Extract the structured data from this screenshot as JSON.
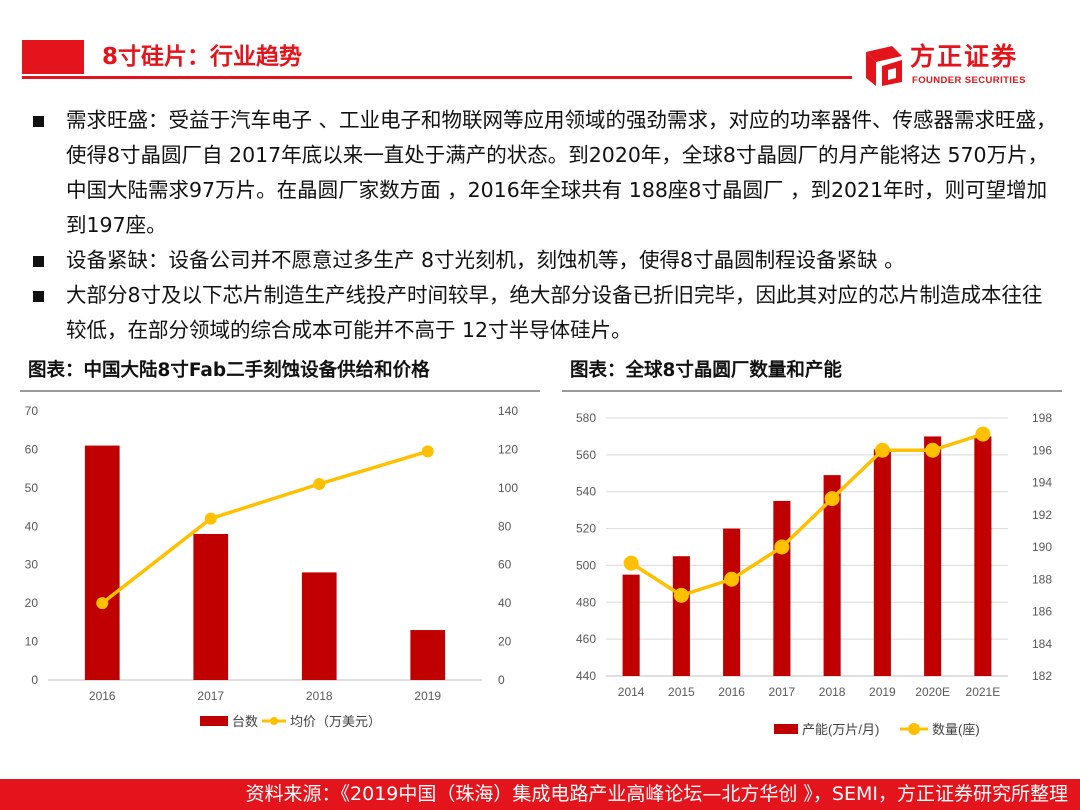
{
  "header": {
    "title": "8寸硅片：行业趋势",
    "logo_cn": "方正证券",
    "logo_en": "FOUNDER SECURITIES",
    "accent_color": "#e3141b"
  },
  "bullets": [
    "需求旺盛：受益于汽车电子 、工业电子和物联网等应用领域的强劲需求，对应的功率器件、传感器需求旺盛，使得8寸晶圆厂自 2017年底以来一直处于满产的状态。到2020年，全球8寸晶圆厂的月产能将达 570万片，中国大陆需求97万片。在晶圆厂家数方面 ，2016年全球共有 188座8寸晶圆厂 ，到2021年时，则可望增加到197座。",
    "设备紧缺：设备公司并不愿意过多生产  8寸光刻机，刻蚀机等，使得8寸晶圆制程设备紧缺 。",
    "大部分8寸及以下芯片制造生产线投产时间较早，绝大部分设备已折旧完毕，因此其对应的芯片制造成本往往较低，在部分领域的综合成本可能并不高于  12寸半导体硅片。"
  ],
  "chart_titles": {
    "left": "图表：中国大陆8寸Fab二手刻蚀设备供给和价格",
    "right": "图表：全球8寸晶圆厂数量和产能"
  },
  "footer": {
    "source": "资料来源：《2019中国（珠海）集成电路产业高峰论坛—北方华创 》，SEMI，方正证券研究所整理"
  },
  "chart_data": [
    {
      "type": "bar",
      "title": "图表：中国大陆8寸Fab二手刻蚀设备供给和价格",
      "categories": [
        "2016",
        "2017",
        "2018",
        "2019"
      ],
      "series": [
        {
          "name": "台数",
          "type": "bar",
          "axis": "left",
          "values": [
            61,
            38,
            28,
            13
          ],
          "color": "#c00000"
        },
        {
          "name": "均价（万美元）",
          "type": "line",
          "axis": "right",
          "values": [
            40,
            84,
            102,
            119
          ],
          "color": "#ffc000"
        }
      ],
      "y_left": {
        "ylim": [
          0,
          70
        ],
        "ticks": [
          "0",
          "10",
          "20",
          "30",
          "40",
          "50",
          "60",
          "70"
        ]
      },
      "y_right": {
        "ylim": [
          0,
          140
        ],
        "ticks": [
          "0",
          "20",
          "40",
          "60",
          "80",
          "100",
          "120",
          "140"
        ]
      },
      "legend": "bottom",
      "grid": false
    },
    {
      "type": "bar",
      "title": "图表：全球8寸晶圆厂数量和产能",
      "categories": [
        "2014",
        "2015",
        "2016",
        "2017",
        "2018",
        "2019",
        "2020E",
        "2021E"
      ],
      "series": [
        {
          "name": "产能(万片/月)",
          "type": "bar",
          "axis": "left",
          "values": [
            495,
            505,
            520,
            535,
            549,
            563,
            570,
            570
          ],
          "color": "#c00000"
        },
        {
          "name": "数量(座)",
          "type": "line",
          "axis": "right",
          "values": [
            189,
            187,
            188,
            190,
            193,
            196,
            196,
            197
          ],
          "color": "#ffc000"
        }
      ],
      "y_left": {
        "ylim": [
          440,
          580
        ],
        "ticks": [
          "440",
          "460",
          "480",
          "500",
          "520",
          "540",
          "560",
          "580"
        ]
      },
      "y_right": {
        "ylim": [
          182,
          198
        ],
        "ticks": [
          "182",
          "184",
          "186",
          "188",
          "190",
          "192",
          "194",
          "196",
          "198"
        ]
      },
      "legend": "bottom",
      "grid": true
    }
  ]
}
